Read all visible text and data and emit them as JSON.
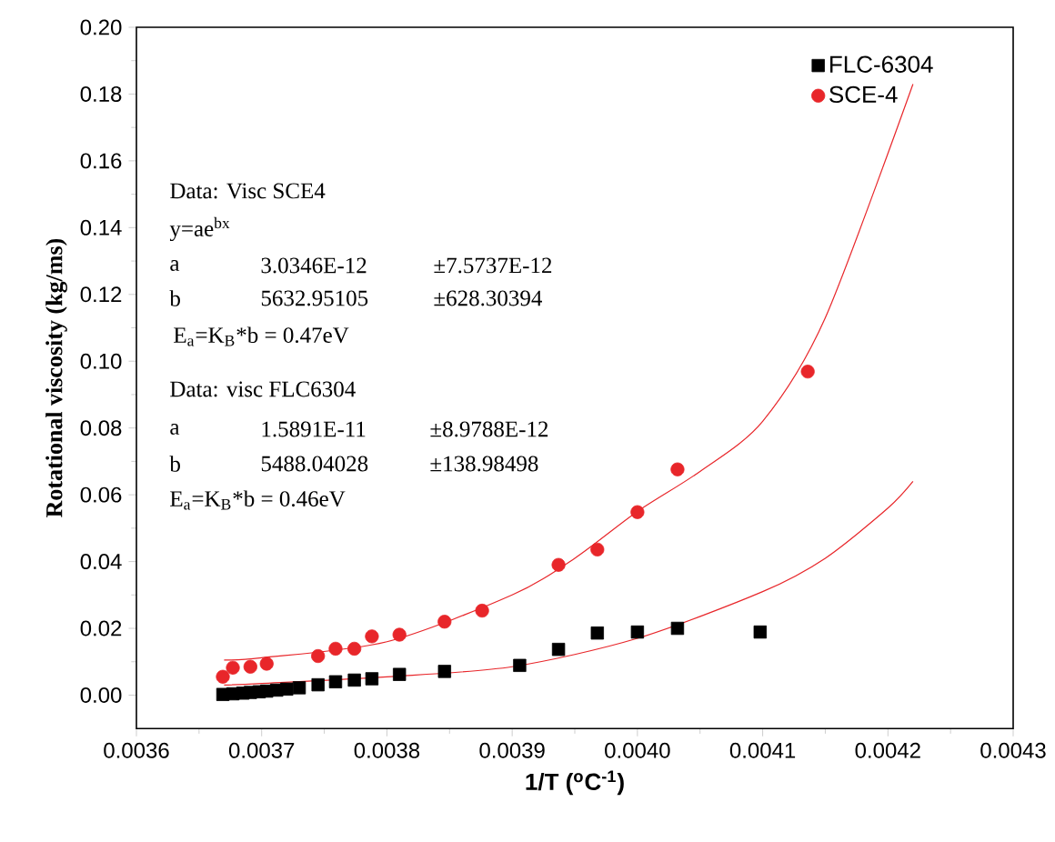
{
  "chart_data": {
    "type": "scatter",
    "xlabel": "1/T ($^{o}$C$^{-1}$)",
    "ylabel": "Rotational viscosity (kg/ms)",
    "xlim": [
      0.0036,
      0.0043
    ],
    "ylim": [
      -0.01,
      0.2
    ],
    "xticks": [
      {
        "value": 0.0036,
        "label": "0.0036"
      },
      {
        "value": 0.0037,
        "label": "0.0037"
      },
      {
        "value": 0.0038,
        "label": "0.0038"
      },
      {
        "value": 0.0039,
        "label": "0.0039"
      },
      {
        "value": 0.004,
        "label": "0.0040"
      },
      {
        "value": 0.0041,
        "label": "0.0041"
      },
      {
        "value": 0.0042,
        "label": "0.0042"
      },
      {
        "value": 0.0043,
        "label": "0.0043"
      }
    ],
    "yticks": [
      {
        "value": 0,
        "label": "0.00"
      },
      {
        "value": 0.02,
        "label": "0.02"
      },
      {
        "value": 0.04,
        "label": "0.04"
      },
      {
        "value": 0.06,
        "label": "0.06"
      },
      {
        "value": 0.08,
        "label": "0.08"
      },
      {
        "value": 0.1,
        "label": "0.10"
      },
      {
        "value": 0.12,
        "label": "0.12"
      },
      {
        "value": 0.14,
        "label": "0.14"
      },
      {
        "value": 0.16,
        "label": "0.16"
      },
      {
        "value": 0.18,
        "label": "0.18"
      },
      {
        "value": 0.2,
        "label": "0.20"
      }
    ],
    "legend": "top right",
    "grid": false,
    "series": [
      {
        "name": "FLC-6304",
        "marker": "square",
        "color": "#000000",
        "x": [
          0.003669,
          0.003677,
          0.003685,
          0.003691,
          0.003698,
          0.003704,
          0.003712,
          0.00372,
          0.00373,
          0.003745,
          0.003759,
          0.003774,
          0.003788,
          0.00381,
          0.003846,
          0.003906,
          0.003937,
          0.003968,
          0.004,
          0.004032,
          0.004098
        ],
        "values": [
          0.0002,
          0.0004,
          0.0006,
          0.0008,
          0.001,
          0.0012,
          0.0015,
          0.0018,
          0.0022,
          0.0031,
          0.004,
          0.0045,
          0.0049,
          0.0062,
          0.0071,
          0.0089,
          0.0137,
          0.0186,
          0.0189,
          0.02,
          0.0189
        ]
      },
      {
        "name": "SCE-4",
        "marker": "circle",
        "color": "#e8262a",
        "x": [
          0.003669,
          0.003677,
          0.003691,
          0.003704,
          0.003745,
          0.003759,
          0.003774,
          0.003788,
          0.00381,
          0.003846,
          0.003876,
          0.003937,
          0.003968,
          0.004,
          0.004032,
          0.004136
        ],
        "values": [
          0.0055,
          0.0082,
          0.0085,
          0.0094,
          0.0117,
          0.0139,
          0.0139,
          0.0176,
          0.0181,
          0.022,
          0.0253,
          0.039,
          0.0436,
          0.0548,
          0.0676,
          0.0969
        ]
      },
      {
        "type": "line",
        "marker": "none",
        "color": "#e8262a",
        "x": [
          0.00367,
          0.0037,
          0.0038,
          0.0039,
          0.00395,
          0.004,
          0.00405,
          0.0041,
          0.00415,
          0.00422
        ],
        "values": [
          0.0105,
          0.0112,
          0.016,
          0.03,
          0.041,
          0.055,
          0.067,
          0.082,
          0.113,
          0.183
        ]
      },
      {
        "type": "line",
        "marker": "none",
        "color": "#e8262a",
        "x": [
          0.00367,
          0.0037,
          0.0038,
          0.0039,
          0.004,
          0.0041,
          0.00415,
          0.0042,
          0.00422
        ],
        "values": [
          0.003,
          0.0035,
          0.0055,
          0.0085,
          0.017,
          0.031,
          0.041,
          0.056,
          0.064
        ]
      }
    ],
    "annotations": [
      "Data: Visc SCE4",
      "y=ae$^{bx}$",
      "a",
      "3.0346E-12",
      "±7.5737E-12",
      "b",
      "5632.95105",
      "±628.30394",
      "E$_{a}$=K$_{B}$*b = 0.47eV",
      "Data: visc FLC6304",
      "a",
      "1.5891E-11",
      "±8.9788E-12",
      "b",
      "5488.04028",
      "±138.98498",
      "E$_{a}$=K$_{B}$*b = 0.46eV"
    ]
  }
}
